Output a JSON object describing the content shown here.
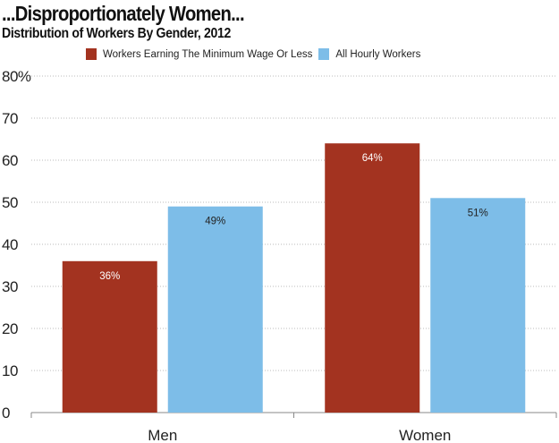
{
  "chart_data": {
    "type": "bar",
    "title": "...Disproportionately Women...",
    "subtitle": "Distribution of Workers By Gender, 2012",
    "categories": [
      "Men",
      "Women"
    ],
    "series": [
      {
        "name": "Workers Earning The Minimum Wage Or Less",
        "color": "#A33320",
        "values": [
          36,
          64
        ],
        "labels": [
          "36%",
          "64%"
        ]
      },
      {
        "name": "All Hourly Workers",
        "color": "#7DBDE8",
        "values": [
          49,
          51
        ],
        "labels": [
          "49%",
          "51%"
        ]
      }
    ],
    "ylim": [
      0,
      80
    ],
    "yticks": [
      0,
      10,
      20,
      30,
      40,
      50,
      60,
      70,
      80
    ],
    "ytick_labels": [
      "0",
      "10",
      "20",
      "30",
      "40",
      "50",
      "60",
      "70",
      "80%"
    ],
    "xlabel": "",
    "ylabel": "",
    "grid": true,
    "legend_position": "top"
  }
}
